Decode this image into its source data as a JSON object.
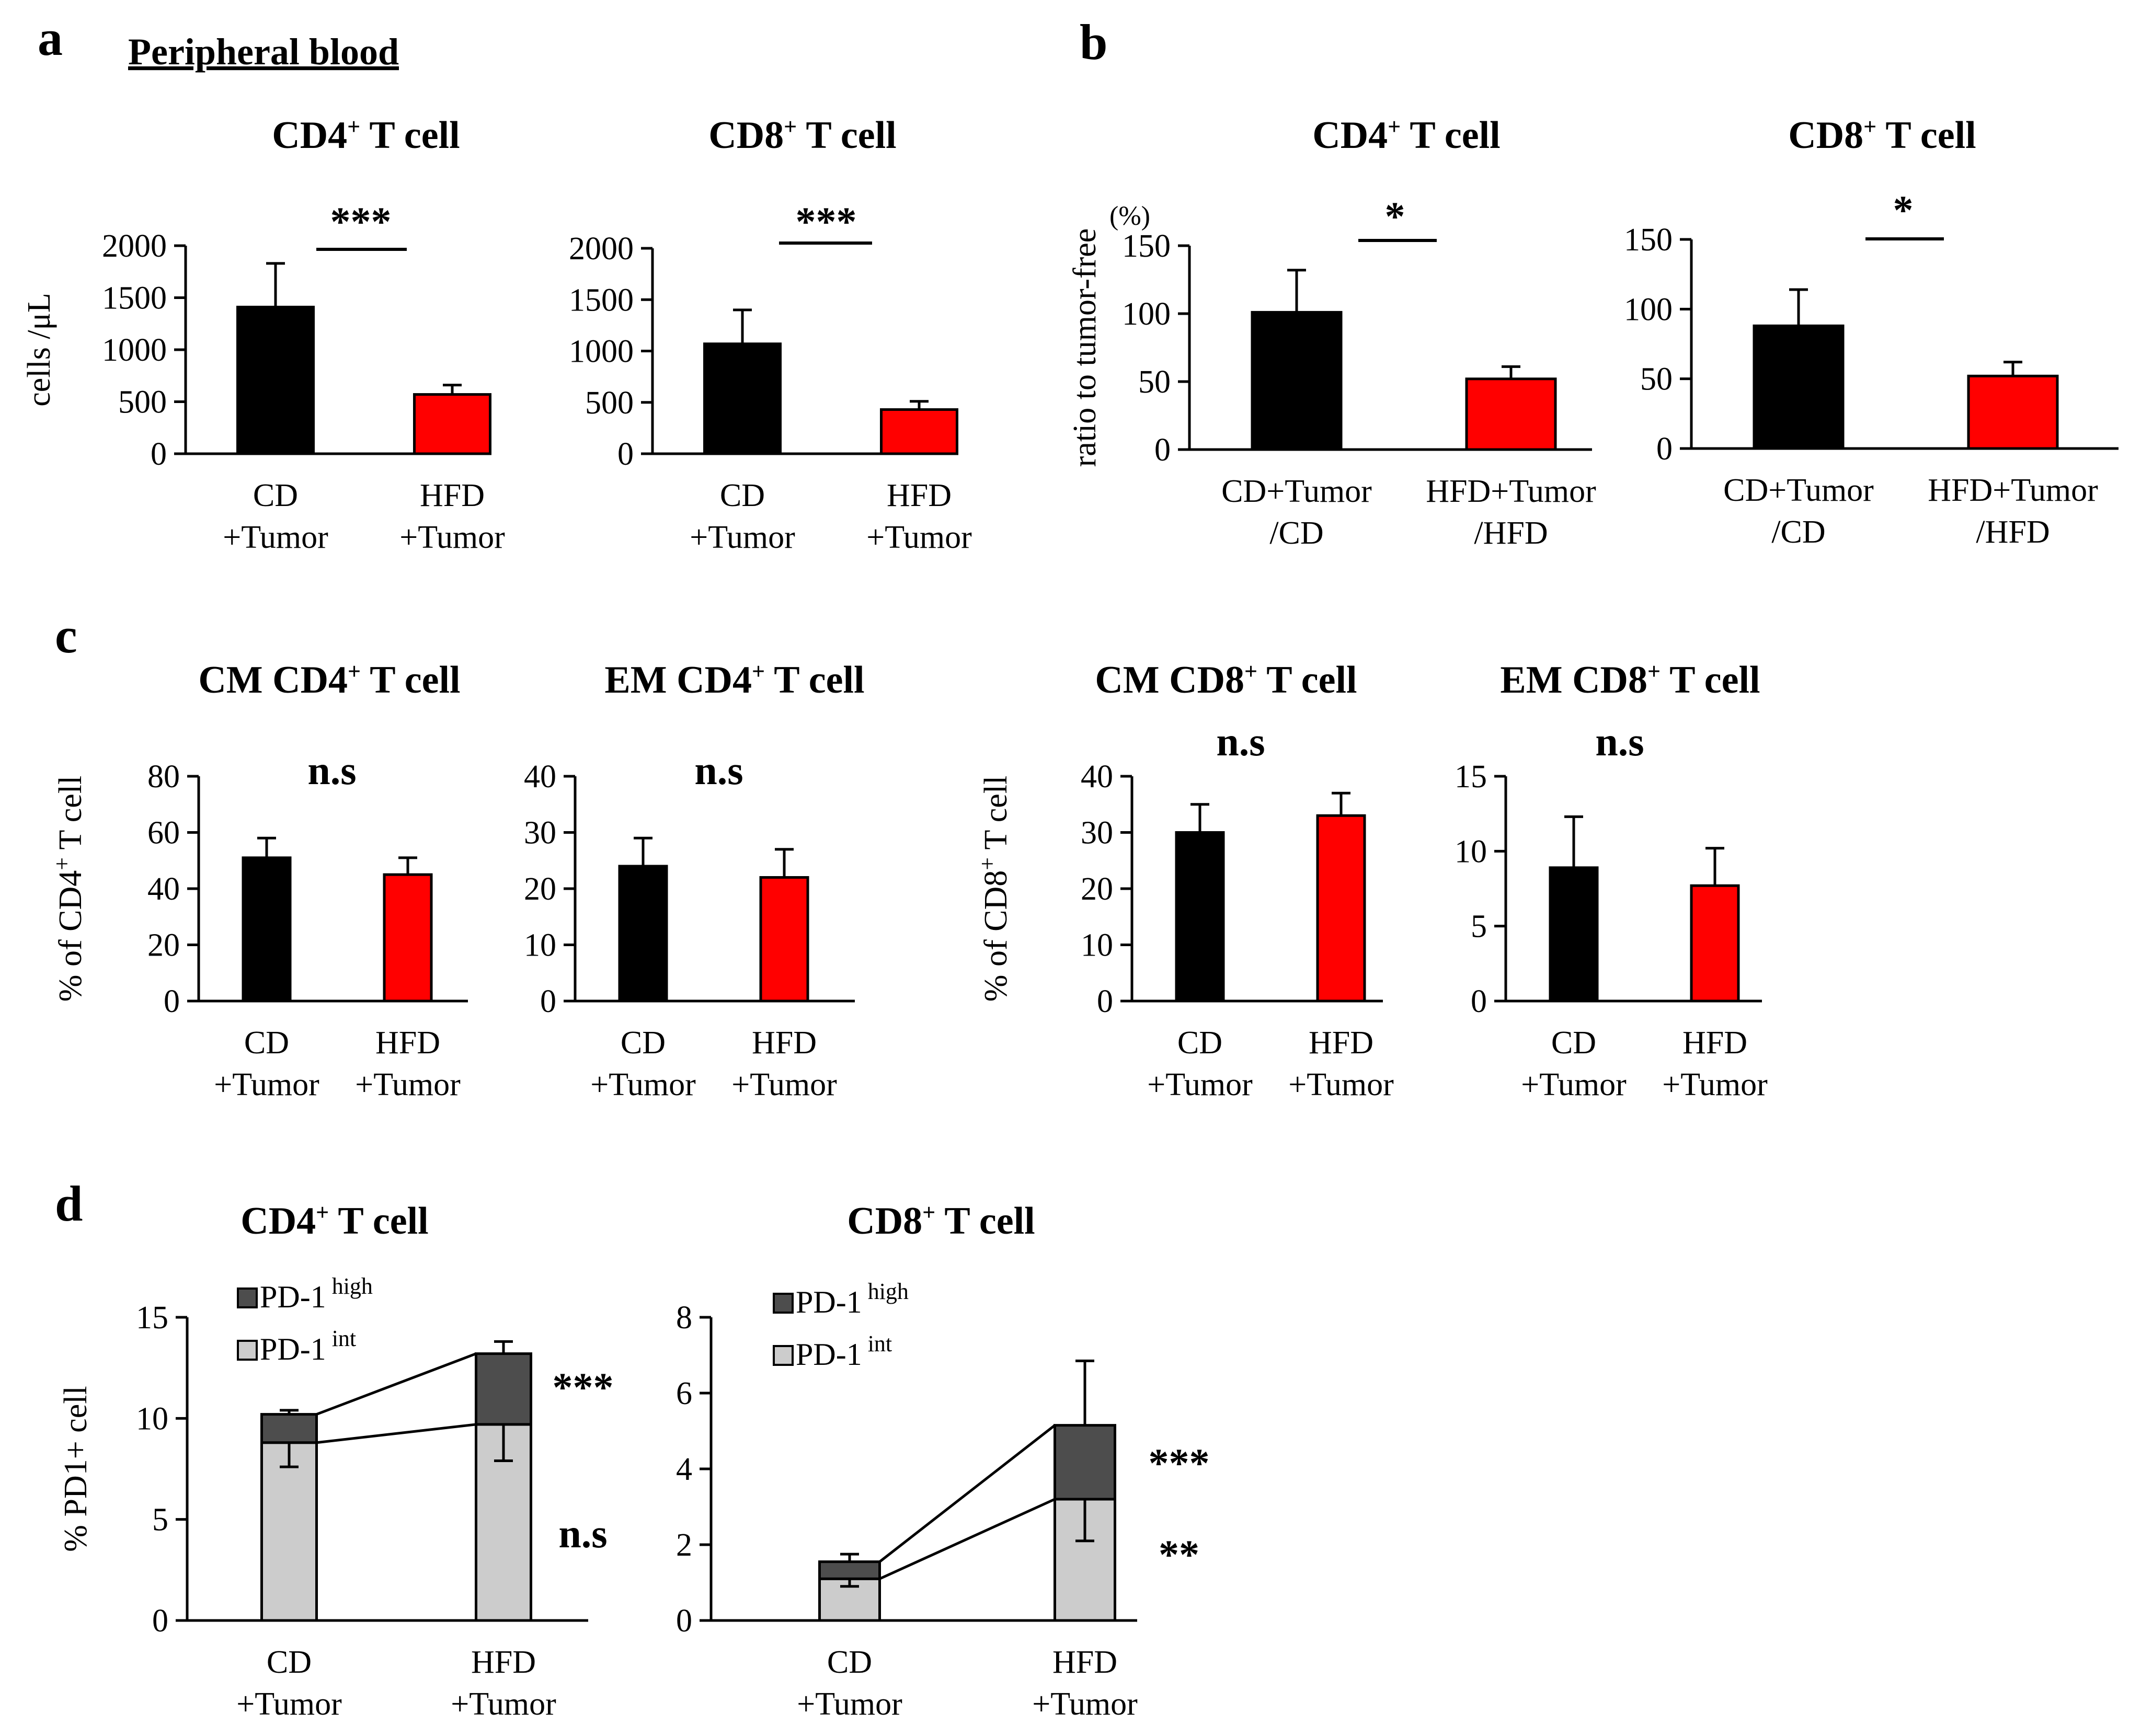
{
  "labels": {
    "panel_a": "a",
    "panel_b": "b",
    "panel_c": "c",
    "panel_d": "d",
    "peripheral_blood": "Peripheral blood",
    "cd4": "CD4",
    "cd8": "CD8",
    "plus": "+",
    "t_cell": " T cell",
    "cm": "CM ",
    "em": "EM ",
    "pd1": "PD-1",
    "high": "high",
    "int": "int"
  },
  "colors": {
    "cd": "#000000",
    "hfd": "#ff0000",
    "pd1_high": "#4d4d4d",
    "pd1_int": "#cccccc"
  },
  "chart_data": [
    {
      "id": "a-cd4",
      "type": "bar",
      "title": "CD4+ T cell",
      "ylabel": "cells /μL",
      "categories": [
        "CD +Tumor",
        "HFD +Tumor"
      ],
      "category_lines": [
        [
          "CD",
          "+Tumor"
        ],
        [
          "HFD",
          "+Tumor"
        ]
      ],
      "values": [
        1410,
        570
      ],
      "errors": [
        420,
        90
      ],
      "ylim": [
        0,
        2000
      ],
      "ticks": [
        0,
        500,
        1000,
        1500,
        2000
      ],
      "significance": "***"
    },
    {
      "id": "a-cd8",
      "type": "bar",
      "title": "CD8+ T cell",
      "ylabel": "",
      "categories": [
        "CD +Tumor",
        "HFD +Tumor"
      ],
      "category_lines": [
        [
          "CD",
          "+Tumor"
        ],
        [
          "HFD",
          "+Tumor"
        ]
      ],
      "values": [
        1070,
        430
      ],
      "errors": [
        330,
        80
      ],
      "ylim": [
        0,
        2000
      ],
      "ticks": [
        0,
        500,
        1000,
        1500,
        2000
      ],
      "significance": "***"
    },
    {
      "id": "b-cd4",
      "type": "bar",
      "title": "CD4+ T cell",
      "ylabel": "ratio to tumor-free",
      "yunit": "(%)",
      "categories": [
        "CD+Tumor /CD",
        "HFD+Tumor /HFD"
      ],
      "category_lines": [
        [
          "CD+Tumor",
          "/CD"
        ],
        [
          "HFD+Tumor",
          "/HFD"
        ]
      ],
      "values": [
        101,
        52
      ],
      "errors": [
        31,
        9
      ],
      "ylim": [
        0,
        150
      ],
      "ticks": [
        0,
        50,
        100,
        150
      ],
      "significance": "*"
    },
    {
      "id": "b-cd8",
      "type": "bar",
      "title": "CD8+ T cell",
      "ylabel": "",
      "categories": [
        "CD+Tumor /CD",
        "HFD+Tumor /HFD"
      ],
      "category_lines": [
        [
          "CD+Tumor",
          "/CD"
        ],
        [
          "HFD+Tumor",
          "/HFD"
        ]
      ],
      "values": [
        88,
        52
      ],
      "errors": [
        26,
        10
      ],
      "ylim": [
        0,
        150
      ],
      "ticks": [
        0,
        50,
        100,
        150
      ],
      "significance": "*"
    },
    {
      "id": "c-cm-cd4",
      "type": "bar",
      "title": "CM CD4+ T cell",
      "ylabel": "% of CD4+ T cell",
      "categories": [
        "CD +Tumor",
        "HFD +Tumor"
      ],
      "category_lines": [
        [
          "CD",
          "+Tumor"
        ],
        [
          "HFD",
          "+Tumor"
        ]
      ],
      "values": [
        51,
        45
      ],
      "errors": [
        7,
        6
      ],
      "ylim": [
        0,
        80
      ],
      "ticks": [
        0,
        20,
        40,
        60,
        80
      ],
      "significance": "n.s"
    },
    {
      "id": "c-em-cd4",
      "type": "bar",
      "title": "EM CD4+ T cell",
      "ylabel": "",
      "categories": [
        "CD +Tumor",
        "HFD +Tumor"
      ],
      "category_lines": [
        [
          "CD",
          "+Tumor"
        ],
        [
          "HFD",
          "+Tumor"
        ]
      ],
      "values": [
        24,
        22
      ],
      "errors": [
        5,
        5
      ],
      "ylim": [
        0,
        40
      ],
      "ticks": [
        0,
        10,
        20,
        30,
        40
      ],
      "significance": "n.s"
    },
    {
      "id": "c-cm-cd8",
      "type": "bar",
      "title": "CM CD8+ T cell",
      "ylabel": "% of CD8+ T cell",
      "categories": [
        "CD +Tumor",
        "HFD +Tumor"
      ],
      "category_lines": [
        [
          "CD",
          "+Tumor"
        ],
        [
          "HFD",
          "+Tumor"
        ]
      ],
      "values": [
        30,
        33
      ],
      "errors": [
        5,
        4
      ],
      "ylim": [
        0,
        40
      ],
      "ticks": [
        0,
        10,
        20,
        30,
        40
      ],
      "significance": "n.s"
    },
    {
      "id": "c-em-cd8",
      "type": "bar",
      "title": "EM CD8+ T cell",
      "ylabel": "",
      "categories": [
        "CD +Tumor",
        "HFD +Tumor"
      ],
      "category_lines": [
        [
          "CD",
          "+Tumor"
        ],
        [
          "HFD",
          "+Tumor"
        ]
      ],
      "values": [
        8.9,
        7.7
      ],
      "errors": [
        3.4,
        2.5
      ],
      "ylim": [
        0,
        15
      ],
      "ticks": [
        0,
        5,
        10,
        15
      ],
      "significance": "n.s"
    },
    {
      "id": "d-cd4",
      "type": "stacked-bar",
      "title": "CD4+ T cell",
      "ylabel": "% PD1+ cell",
      "categories": [
        "CD +Tumor",
        "HFD +Tumor"
      ],
      "category_lines": [
        [
          "CD",
          "+Tumor"
        ],
        [
          "HFD",
          "+Tumor"
        ]
      ],
      "series": [
        {
          "name": "PD-1 int",
          "values": [
            8.8,
            9.7
          ],
          "errors": [
            1.2,
            1.8
          ]
        },
        {
          "name": "PD-1 high",
          "values": [
            1.4,
            3.5
          ],
          "errors": [
            0.2,
            0.6
          ]
        }
      ],
      "ylim": [
        0,
        15
      ],
      "ticks": [
        0,
        5,
        10,
        15
      ],
      "significance": {
        "PD-1 high": "***",
        "PD-1 int": "n.s"
      }
    },
    {
      "id": "d-cd8",
      "type": "stacked-bar",
      "title": "CD8+ T cell",
      "ylabel": "",
      "categories": [
        "CD +Tumor",
        "HFD +Tumor"
      ],
      "category_lines": [
        [
          "CD",
          "+Tumor"
        ],
        [
          "HFD",
          "+Tumor"
        ]
      ],
      "series": [
        {
          "name": "PD-1 int",
          "values": [
            1.1,
            3.2
          ],
          "errors": [
            0.2,
            1.1
          ]
        },
        {
          "name": "PD-1 high",
          "values": [
            0.45,
            1.95
          ],
          "errors": [
            0.2,
            1.7
          ]
        }
      ],
      "ylim": [
        0,
        8
      ],
      "ticks": [
        0,
        2,
        4,
        6,
        8
      ],
      "significance": {
        "PD-1 high": "***",
        "PD-1 int": "**"
      }
    }
  ]
}
